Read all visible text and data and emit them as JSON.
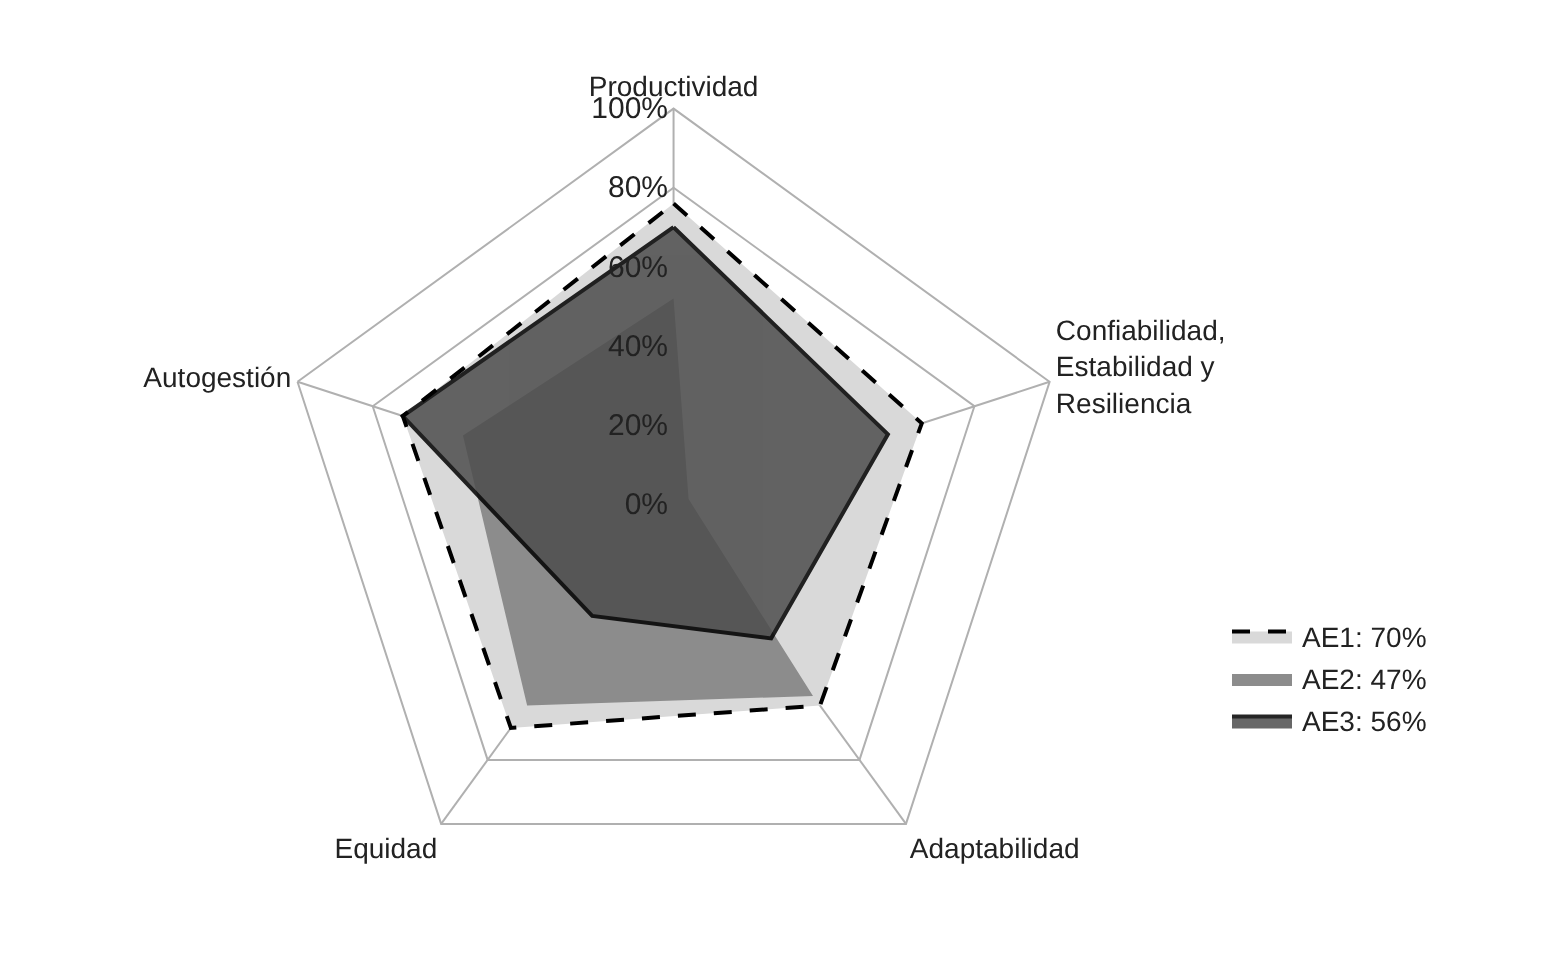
{
  "chart_data": {
    "type": "radar",
    "categories": [
      "Productividad",
      "Confiabilidad, Estabilidad y Resiliencia",
      "Adaptabilidad",
      "Equidad",
      "Autogestión"
    ],
    "series": [
      {
        "name": "AE1: 70%",
        "color": "#d9d9d9",
        "line_style": "dashed",
        "values": [
          76,
          66,
          63,
          70,
          72
        ]
      },
      {
        "name": "AE2: 47%",
        "color": "#8c8c8c",
        "line_style": "none",
        "values": [
          52,
          4,
          60,
          63,
          56
        ]
      },
      {
        "name": "AE3: 56%",
        "color": "#4d4d4d",
        "line_style": "solid",
        "values": [
          70,
          57,
          42,
          35,
          72
        ]
      }
    ],
    "ylim": [
      0,
      100
    ],
    "yticks": [
      {
        "value": 0,
        "label": "0%"
      },
      {
        "value": 20,
        "label": "20%"
      },
      {
        "value": 40,
        "label": "40%"
      },
      {
        "value": 60,
        "label": "60%"
      },
      {
        "value": 80,
        "label": "80%"
      },
      {
        "value": 100,
        "label": "100%"
      }
    ],
    "legend": "bottom right",
    "grid": true
  }
}
